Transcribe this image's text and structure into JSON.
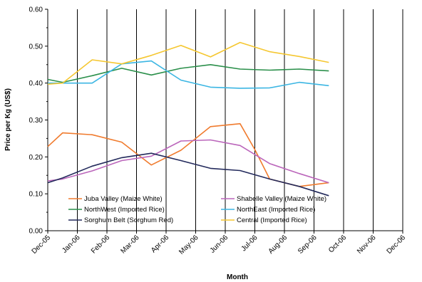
{
  "chart_data": {
    "type": "line",
    "title": "",
    "xlabel": "Month",
    "ylabel": "Price per Kg (US$)",
    "categories": [
      "Dec-05",
      "Jan-06",
      "Feb-06",
      "Mar-06",
      "Apr-06",
      "May-06",
      "Jun-06",
      "Jul-06",
      "Aug-06",
      "Sep-06",
      "Oct-06",
      "Nov-06",
      "Dec-06"
    ],
    "ylim": [
      0,
      0.6
    ],
    "yticks": [
      "0.00",
      "0.10",
      "0.20",
      "0.30",
      "0.40",
      "0.50",
      "0.60"
    ],
    "grid": "vertical",
    "legend_position": "inside-bottom",
    "series": [
      {
        "name": "Juba Valley (Maize White)",
        "color": "#f07b2e",
        "x": [
          0,
          0.5,
          1.5,
          2.5,
          3.5,
          4.5,
          5.5,
          6.5,
          7.0,
          7.5,
          8.5,
          9.0,
          9.5
        ],
        "values": [
          0.228,
          0.265,
          0.26,
          0.24,
          0.178,
          0.218,
          0.282,
          0.29,
          0.22,
          0.14,
          0.12,
          0.125,
          0.13
        ]
      },
      {
        "name": "Shabelle Valley (Maize White)",
        "color": "#bb66bb",
        "x": [
          0,
          0.5,
          1.5,
          2.5,
          3.5,
          4.5,
          5.5,
          6.5,
          7.5,
          8.5,
          9.5
        ],
        "values": [
          0.135,
          0.14,
          0.162,
          0.19,
          0.202,
          0.243,
          0.246,
          0.231,
          0.182,
          0.155,
          0.13
        ]
      },
      {
        "name": "NorthWest (Imported Rice)",
        "color": "#2a8f4a",
        "x": [
          0,
          0.5,
          1.5,
          2.5,
          3.5,
          4.5,
          5.5,
          6.5,
          7.5,
          8.5,
          9.5
        ],
        "values": [
          0.41,
          0.402,
          0.42,
          0.44,
          0.422,
          0.44,
          0.45,
          0.438,
          0.435,
          0.438,
          0.433
        ]
      },
      {
        "name": "NorthEast (Imported Rice)",
        "color": "#3cb6e3",
        "x": [
          0,
          0.5,
          1.5,
          2.5,
          3.5,
          4.5,
          5.5,
          6.5,
          7.5,
          8.5,
          9.5
        ],
        "values": [
          0.4,
          0.4,
          0.4,
          0.452,
          0.46,
          0.408,
          0.389,
          0.386,
          0.387,
          0.402,
          0.393
        ]
      },
      {
        "name": "Sorghum Belt (Sorghum Red)",
        "color": "#232a5c",
        "x": [
          0,
          0.5,
          1.5,
          2.5,
          3.5,
          4.5,
          5.5,
          6.5,
          7.5,
          8.5,
          9.5
        ],
        "values": [
          0.13,
          0.143,
          0.175,
          0.198,
          0.21,
          0.19,
          0.169,
          0.163,
          0.14,
          0.12,
          0.095
        ]
      },
      {
        "name": "Central (Imported Rice)",
        "color": "#f5c731",
        "x": [
          0,
          0.5,
          1.5,
          2.5,
          3.5,
          4.5,
          5.5,
          6.5,
          7.5,
          8.5,
          9.5
        ],
        "values": [
          0.397,
          0.4,
          0.463,
          0.452,
          0.475,
          0.502,
          0.471,
          0.51,
          0.485,
          0.472,
          0.456
        ]
      }
    ]
  }
}
